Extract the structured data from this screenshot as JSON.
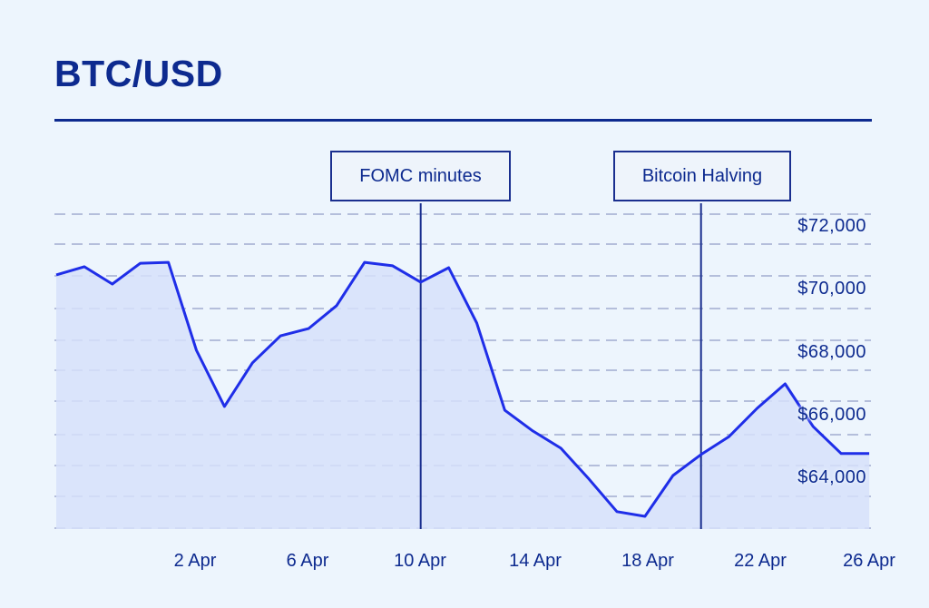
{
  "title": "BTC/USD",
  "colors": {
    "line": "#1f2ee8",
    "fill": "#d6e0fa",
    "text": "#0d2a8f",
    "grid": "#b4bedb",
    "background": "#edf5fd"
  },
  "annotations": [
    {
      "label": "FOMC minutes",
      "date": "10 Apr"
    },
    {
      "label": "Bitcoin Halving",
      "date": "20 Apr"
    }
  ],
  "y_axis": {
    "labels": [
      "$72,000",
      "$70,000",
      "$68,000",
      "$66,000",
      "$64,000"
    ]
  },
  "x_axis": {
    "labels": [
      "2 Apr",
      "6 Apr",
      "10 Apr",
      "14 Apr",
      "18 Apr",
      "22 Apr",
      "26 Apr"
    ]
  },
  "chart_data": {
    "type": "area",
    "title": "BTC/USD",
    "xlabel": "",
    "ylabel": "",
    "x": [
      "28 Mar",
      "29 Mar",
      "30 Mar",
      "31 Mar",
      "1 Apr",
      "2 Apr",
      "3 Apr",
      "4 Apr",
      "5 Apr",
      "6 Apr",
      "7 Apr",
      "8 Apr",
      "9 Apr",
      "10 Apr",
      "11 Apr",
      "12 Apr",
      "13 Apr",
      "14 Apr",
      "15 Apr",
      "16 Apr",
      "17 Apr",
      "18 Apr",
      "19 Apr",
      "20 Apr",
      "21 Apr",
      "22 Apr",
      "23 Apr",
      "24 Apr",
      "25 Apr",
      "26 Apr"
    ],
    "series": [
      {
        "name": "BTC/USD",
        "values": [
          70470,
          70730,
          70180,
          70840,
          70870,
          68070,
          66280,
          67670,
          68530,
          68760,
          69490,
          70870,
          70760,
          70240,
          70700,
          68940,
          66160,
          65500,
          64950,
          63970,
          62930,
          62780,
          64080,
          64750,
          65320,
          66220,
          67000,
          65640,
          64780,
          64780
        ]
      }
    ],
    "ytick_labels": [
      "$64,000",
      "$66,000",
      "$68,000",
      "$70,000",
      "$72,000"
    ],
    "xtick_labels": [
      "2 Apr",
      "6 Apr",
      "10 Apr",
      "14 Apr",
      "18 Apr",
      "22 Apr",
      "26 Apr"
    ],
    "ylim": [
      62400,
      72400
    ],
    "grid": "horizontal dashed",
    "y_axis_position": "right",
    "annotations": [
      {
        "x": "10 Apr",
        "label": "FOMC minutes"
      },
      {
        "x": "20 Apr",
        "label": "Bitcoin Halving"
      }
    ]
  }
}
